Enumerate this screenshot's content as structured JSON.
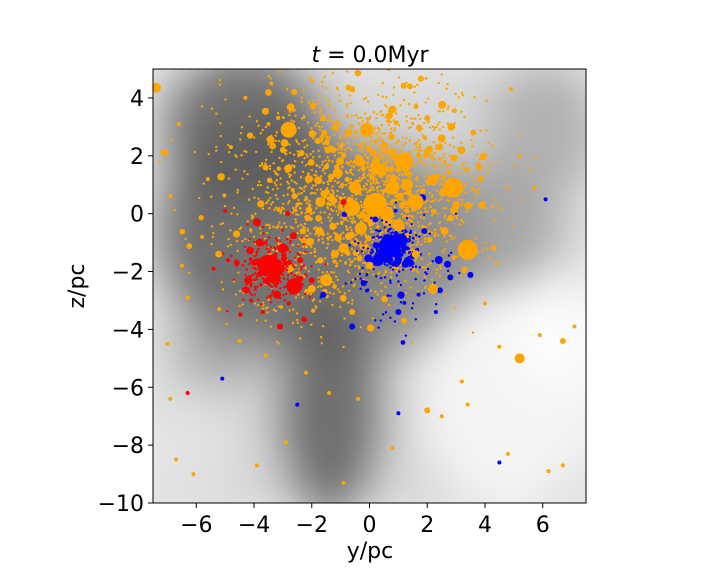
{
  "chart_data": {
    "type": "scatter",
    "title": "t = 0.0Myr",
    "title_parts": {
      "var": "t",
      "rest": " = 0.0Myr"
    },
    "xlabel": "y/pc",
    "ylabel": "z/pc",
    "xlim": [
      -7.5,
      7.5
    ],
    "ylim": [
      -10,
      5
    ],
    "xticks": [
      -6,
      -4,
      -2,
      0,
      2,
      4,
      6
    ],
    "xtick_labels": [
      "−6",
      "−4",
      "−2",
      "0",
      "2",
      "4",
      "6"
    ],
    "yticks": [
      -10,
      -8,
      -6,
      -4,
      -2,
      0,
      2,
      4
    ],
    "ytick_labels": [
      "−10",
      "−8",
      "−6",
      "−4",
      "−2",
      "0",
      "2",
      "4"
    ],
    "grid": false,
    "background": "grayscale gas column density map",
    "series": [
      {
        "color": "#ffa500",
        "points": [
          [
            -7.4,
            4.35,
            5
          ],
          [
            -2.8,
            2.9,
            8
          ],
          [
            -0.1,
            2.9,
            7
          ],
          [
            1.2,
            1.8,
            9
          ],
          [
            2.9,
            0.9,
            10
          ],
          [
            3.4,
            -1.25,
            10
          ],
          [
            0.8,
            0.9,
            7
          ],
          [
            -0.6,
            0.2,
            8
          ],
          [
            0.2,
            0.3,
            12
          ],
          [
            1.6,
            0.4,
            8
          ],
          [
            -1.5,
            -2.3,
            6
          ],
          [
            -2.0,
            -2.6,
            4
          ],
          [
            5.2,
            -5.0,
            5
          ],
          [
            6.7,
            -4.4,
            3
          ],
          [
            2.2,
            -2.6,
            5
          ],
          [
            -1.1,
            1.4,
            5
          ],
          [
            0.4,
            1.5,
            6
          ],
          [
            -0.3,
            -0.5,
            6
          ],
          [
            1.0,
            -0.4,
            6
          ],
          [
            2.2,
            1.2,
            5
          ],
          [
            2.5,
            2.6,
            4
          ],
          [
            0.8,
            3.6,
            4
          ],
          [
            -1.6,
            3.3,
            3
          ],
          [
            -3.5,
            3.1,
            2
          ],
          [
            -4.8,
            2.3,
            2
          ],
          [
            -5.6,
            1.2,
            2
          ],
          [
            -5.8,
            -0.8,
            2
          ],
          [
            -6.5,
            -1.8,
            2
          ],
          [
            -6.3,
            -2.9,
            2
          ],
          [
            -5.2,
            -3.3,
            2
          ],
          [
            -4.5,
            -4.4,
            2
          ],
          [
            -3.6,
            -4.9,
            2
          ],
          [
            -2.2,
            -5.5,
            2
          ],
          [
            -1.4,
            -6.2,
            2
          ],
          [
            -0.4,
            -6.4,
            2
          ],
          [
            -6.7,
            -8.5,
            2
          ],
          [
            -6.1,
            -9.0,
            2
          ],
          [
            -3.9,
            -8.7,
            2
          ],
          [
            -2.9,
            -7.9,
            2
          ],
          [
            -0.9,
            -9.3,
            2
          ],
          [
            0.8,
            -8.1,
            2
          ],
          [
            2.5,
            -7.0,
            2
          ],
          [
            3.4,
            -6.6,
            2
          ],
          [
            4.8,
            -8.3,
            2
          ],
          [
            6.2,
            -8.9,
            2
          ],
          [
            6.7,
            -8.7,
            2
          ],
          [
            7.1,
            -3.9,
            2
          ],
          [
            5.9,
            -4.2,
            2
          ],
          [
            4.5,
            -4.6,
            2
          ],
          [
            3.2,
            -5.8,
            2
          ],
          [
            2.0,
            -6.8,
            3
          ],
          [
            1.2,
            -3.7,
            3
          ],
          [
            -0.6,
            -3.4,
            3
          ],
          [
            -1.2,
            -1.4,
            4
          ],
          [
            -2.3,
            -0.6,
            3
          ],
          [
            -2.6,
            0.6,
            3
          ],
          [
            -3.6,
            1.6,
            3
          ],
          [
            -3.0,
            2.2,
            3
          ],
          [
            -2.1,
            1.2,
            4
          ],
          [
            -1.7,
            0.4,
            5
          ],
          [
            -0.9,
            -1.2,
            5
          ],
          [
            0.0,
            -1.8,
            4
          ],
          [
            1.6,
            -1.4,
            4
          ],
          [
            2.6,
            -0.6,
            4
          ],
          [
            3.0,
            0.3,
            4
          ],
          [
            3.8,
            1.6,
            3
          ],
          [
            3.6,
            2.8,
            3
          ],
          [
            2.0,
            3.3,
            3
          ],
          [
            1.4,
            4.4,
            3
          ],
          [
            -0.6,
            4.3,
            3
          ],
          [
            -2.0,
            4.6,
            2
          ],
          [
            -3.4,
            4.5,
            2
          ],
          [
            -4.3,
            4.0,
            2
          ],
          [
            -6.6,
            3.1,
            2
          ],
          [
            -6.9,
            0.6,
            2
          ],
          [
            -7.0,
            -4.5,
            2
          ],
          [
            -6.9,
            -6.4,
            2
          ],
          [
            4.9,
            4.3,
            2
          ],
          [
            5.2,
            2.0,
            2
          ],
          [
            5.7,
            0.9,
            2
          ],
          [
            4.4,
            -1.7,
            2
          ],
          [
            4.0,
            -3.1,
            2
          ],
          [
            -0.5,
            0.9,
            6
          ],
          [
            0.6,
            0.0,
            7
          ],
          [
            1.3,
            1.0,
            6
          ]
        ]
      },
      {
        "color": "#ff0000",
        "points": [
          [
            -3.5,
            -1.8,
            11
          ],
          [
            -2.6,
            -2.5,
            8
          ],
          [
            -3.0,
            -1.2,
            5
          ],
          [
            -4.2,
            -2.3,
            4
          ],
          [
            -3.8,
            -1.0,
            4
          ],
          [
            -3.2,
            -2.8,
            4
          ],
          [
            -4.6,
            -1.7,
            3
          ],
          [
            -3.9,
            -0.3,
            4
          ],
          [
            -2.0,
            -2.3,
            3
          ],
          [
            -3.1,
            -3.9,
            3
          ],
          [
            -4.1,
            -3.0,
            2
          ],
          [
            -4.9,
            -1.6,
            2
          ],
          [
            -5.4,
            -1.9,
            2
          ],
          [
            -5.0,
            0.1,
            2
          ],
          [
            -2.4,
            -1.6,
            3
          ],
          [
            -3.3,
            -2.2,
            6
          ],
          [
            -0.9,
            0.4,
            3
          ],
          [
            -6.3,
            -6.2,
            2
          ],
          [
            -3.7,
            -3.4,
            2
          ],
          [
            -2.8,
            -3.1,
            2
          ]
        ]
      },
      {
        "color": "#0000ff",
        "points": [
          [
            0.7,
            -1.15,
            11
          ],
          [
            0.3,
            -1.6,
            6
          ],
          [
            1.1,
            -0.9,
            6
          ],
          [
            1.4,
            -1.7,
            4
          ],
          [
            2.4,
            -1.6,
            4
          ],
          [
            -0.6,
            -3.9,
            3
          ],
          [
            1.0,
            -3.4,
            3
          ],
          [
            6.1,
            0.5,
            2
          ],
          [
            4.5,
            -8.6,
            2
          ],
          [
            -1.6,
            -2.8,
            3
          ],
          [
            0.2,
            -0.2,
            3
          ],
          [
            1.9,
            -0.6,
            3
          ],
          [
            -0.2,
            -2.4,
            3
          ],
          [
            2.8,
            -2.2,
            3
          ],
          [
            1.7,
            -2.8,
            2
          ],
          [
            -2.5,
            -6.6,
            2
          ],
          [
            1.0,
            -6.9,
            2
          ],
          [
            -5.1,
            -5.7,
            2
          ],
          [
            0.9,
            0.1,
            2
          ],
          [
            2.3,
            -3.4,
            2
          ]
        ]
      }
    ]
  }
}
